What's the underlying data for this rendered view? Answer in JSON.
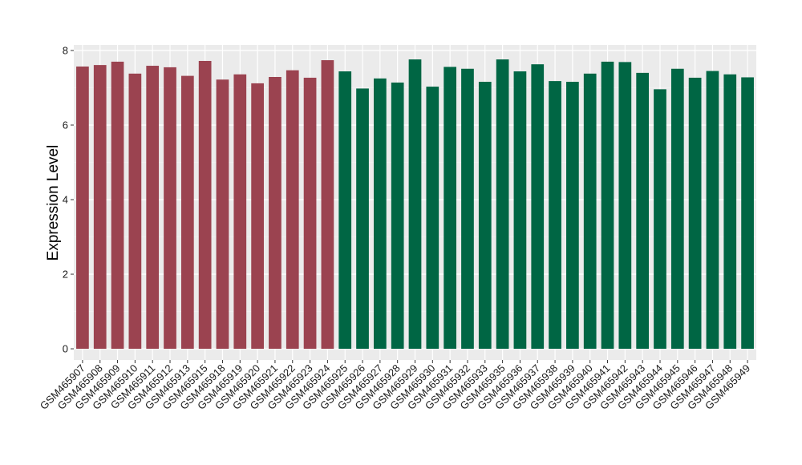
{
  "chart_data": {
    "type": "bar",
    "title": "",
    "xlabel": "",
    "ylabel": "Expression Level",
    "ylim": [
      -0.3,
      8.15
    ],
    "yticks": [
      0,
      2,
      4,
      6,
      8
    ],
    "grid": true,
    "legend": "none",
    "categories": [
      "GSM465907",
      "GSM465908",
      "GSM465909",
      "GSM465910",
      "GSM465911",
      "GSM465912",
      "GSM465913",
      "GSM465915",
      "GSM465918",
      "GSM465919",
      "GSM465920",
      "GSM465921",
      "GSM465922",
      "GSM465923",
      "GSM465924",
      "GSM465925",
      "GSM465926",
      "GSM465927",
      "GSM465928",
      "GSM465929",
      "GSM465930",
      "GSM465931",
      "GSM465932",
      "GSM465933",
      "GSM465935",
      "GSM465936",
      "GSM465937",
      "GSM465938",
      "GSM465939",
      "GSM465940",
      "GSM465941",
      "GSM465942",
      "GSM465943",
      "GSM465944",
      "GSM465945",
      "GSM465946",
      "GSM465947",
      "GSM465948",
      "GSM465949"
    ],
    "values": [
      7.57,
      7.61,
      7.7,
      7.38,
      7.59,
      7.55,
      7.32,
      7.72,
      7.22,
      7.36,
      7.12,
      7.29,
      7.47,
      7.27,
      7.74,
      7.44,
      6.98,
      7.25,
      7.14,
      7.76,
      7.03,
      7.56,
      7.51,
      7.16,
      7.76,
      7.44,
      7.63,
      7.18,
      7.16,
      7.38,
      7.7,
      7.69,
      7.4,
      6.96,
      7.51,
      7.27,
      7.45,
      7.36,
      7.28
    ],
    "groups": [
      0,
      0,
      0,
      0,
      0,
      0,
      0,
      0,
      0,
      0,
      0,
      0,
      0,
      0,
      0,
      1,
      1,
      1,
      1,
      1,
      1,
      1,
      1,
      1,
      1,
      1,
      1,
      1,
      1,
      1,
      1,
      1,
      1,
      1,
      1,
      1,
      1,
      1,
      1
    ],
    "colors": [
      "#9b4350",
      "#006644"
    ]
  }
}
